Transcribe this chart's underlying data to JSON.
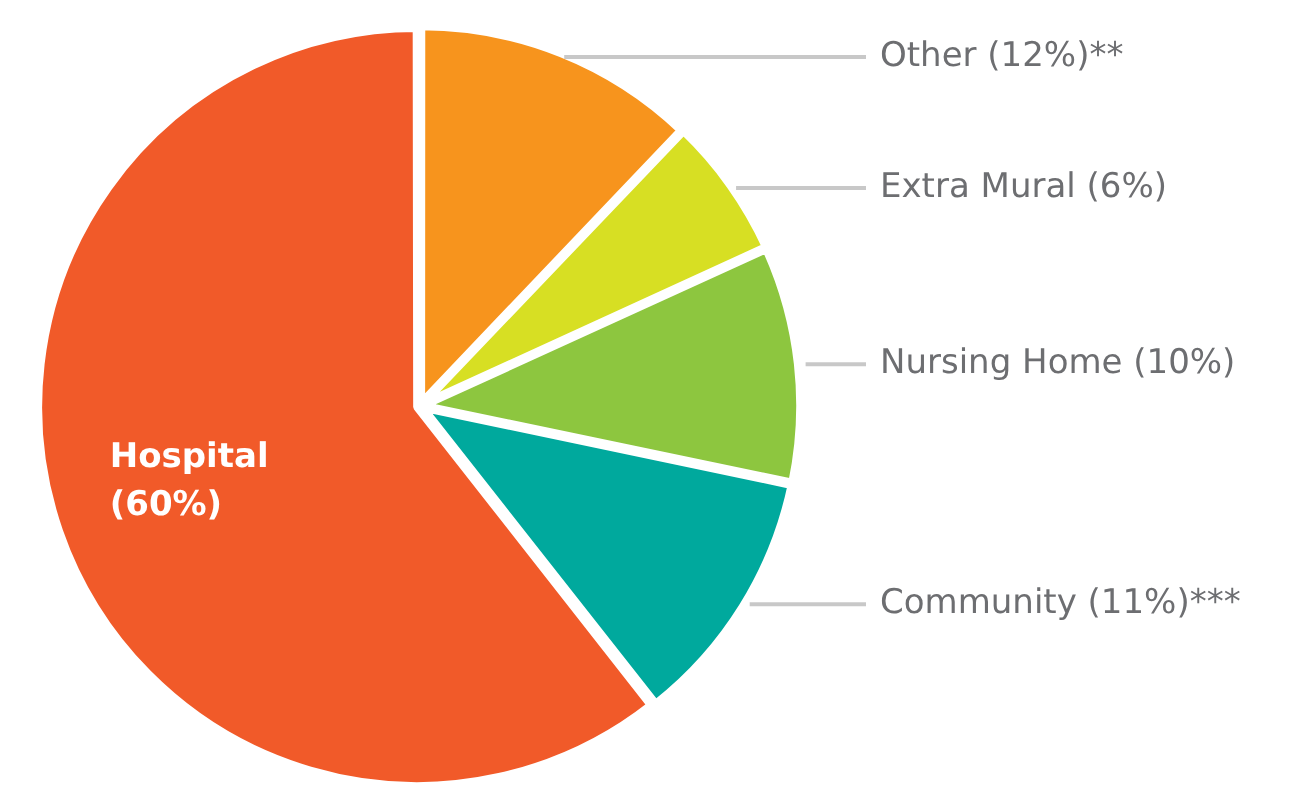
{
  "chart_data": {
    "type": "pie",
    "categories": [
      "Other (12%)**",
      "Extra Mural (6%)",
      "Nursing Home (10%)",
      "Community (11%)***",
      "Hospital (60%)"
    ],
    "values": [
      12,
      6,
      10,
      11,
      60
    ],
    "colors": [
      "#f7941d",
      "#d7df23",
      "#8dc63f",
      "#00a99d",
      "#f15a29"
    ],
    "legend": false
  }
}
